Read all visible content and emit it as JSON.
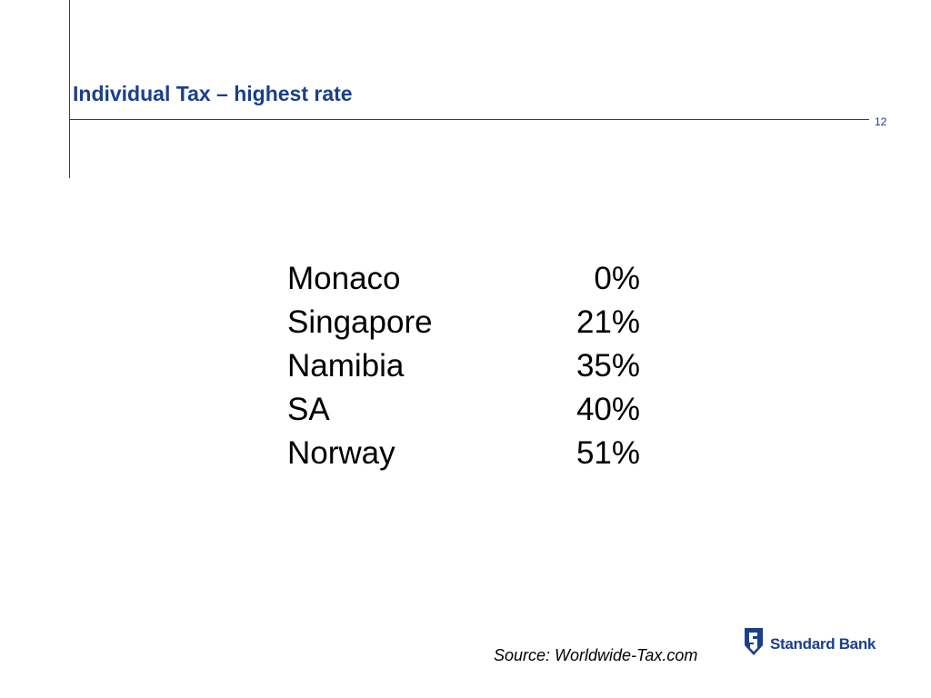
{
  "slide": {
    "title": "Individual Tax – highest rate",
    "page_number": "12"
  },
  "rates": [
    {
      "country": "Monaco",
      "rate": "0%"
    },
    {
      "country": "Singapore",
      "rate": "21%"
    },
    {
      "country": "Namibia",
      "rate": "35%"
    },
    {
      "country": "SA",
      "rate": "40%"
    },
    {
      "country": "Norway",
      "rate": "51%"
    }
  ],
  "footer": {
    "source": "Source: Worldwide-Tax.com",
    "logo_text": "Standard Bank",
    "logo_icon": "standard-bank-shield-icon"
  },
  "colors": {
    "brand_blue": "#1b3f8b",
    "text": "#000000"
  }
}
